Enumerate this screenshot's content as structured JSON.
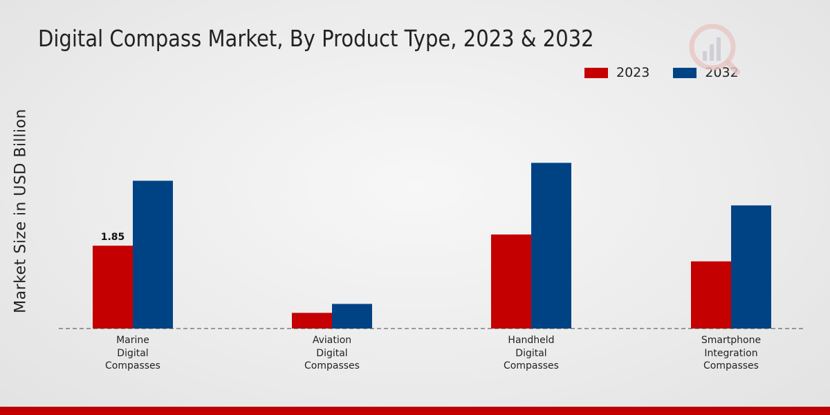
{
  "title": "Digital Compass Market, By Product Type, 2023 & 2032",
  "colors": {
    "series_2023": "#c40000",
    "series_2032": "#004385",
    "footer_bar": "#c00000"
  },
  "legend": [
    {
      "label": "2023",
      "color": "#c40000"
    },
    {
      "label": "2032",
      "color": "#004385"
    }
  ],
  "chart_data": {
    "type": "bar",
    "title": "Digital Compass Market, By Product Type, 2023 & 2032",
    "xlabel": "",
    "ylabel": "Market Size in USD Billion",
    "categories": [
      [
        "Marine",
        "Digital",
        "Compasses"
      ],
      [
        "Aviation",
        "Digital",
        "Compasses"
      ],
      [
        "Handheld",
        "Digital",
        "Compasses"
      ],
      [
        "Smartphone",
        "Integration",
        "Compasses"
      ]
    ],
    "series": [
      {
        "name": "2023",
        "values": [
          1.85,
          0.35,
          2.1,
          1.5
        ]
      },
      {
        "name": "2032",
        "values": [
          3.3,
          0.55,
          3.7,
          2.75
        ]
      }
    ],
    "data_labels": [
      {
        "series": 0,
        "index": 0,
        "text": "1.85"
      }
    ],
    "ylim": [
      0,
      5.9
    ],
    "grid": false,
    "legend_position": "top-right"
  }
}
